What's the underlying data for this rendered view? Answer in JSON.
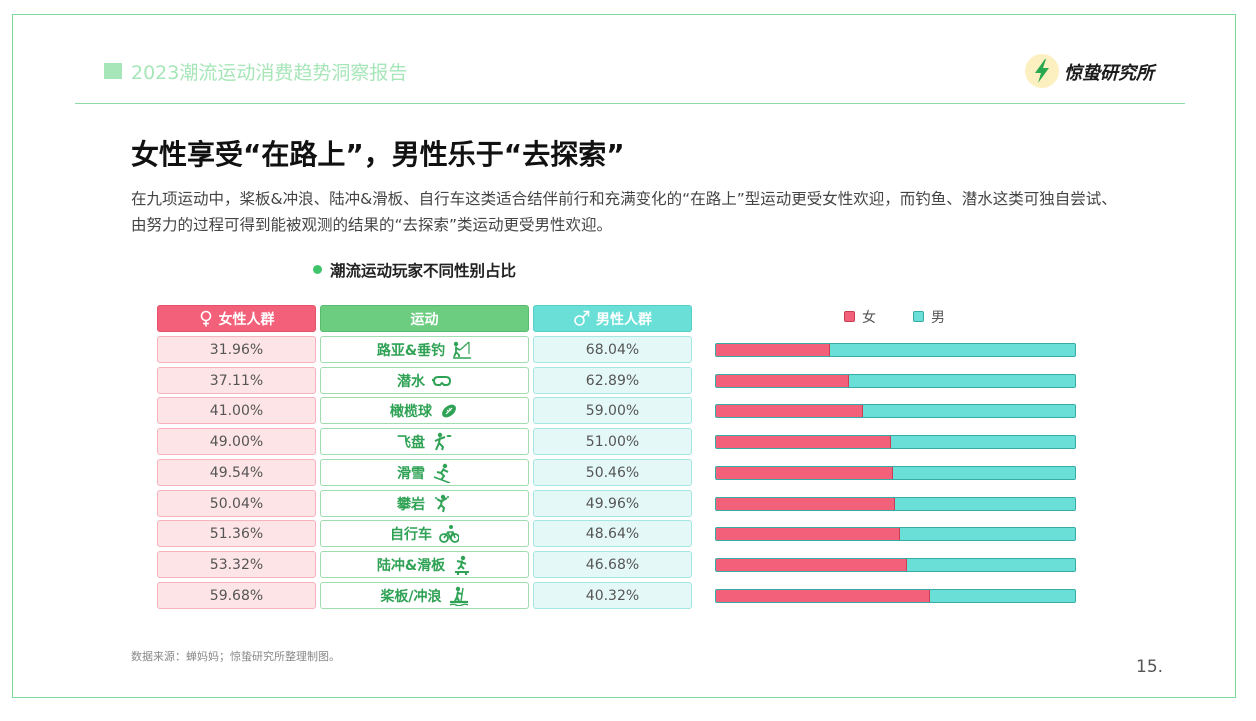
{
  "header": {
    "report_title": "2023潮流运动消费趋势洞察报告",
    "brand": "惊蛰研究所"
  },
  "headline": "女性享受“在路上”，男性乐于“去探索”",
  "paragraph": "在九项运动中，桨板&冲浪、陆冲&滑板、自行车这类适合结伴前行和充满变化的“在路上”型运动更受女性欢迎，而钓鱼、潜水这类可独自尝试、由努力的过程可得到能被观测的结果的“去探索”类运动更受男性欢迎。",
  "chart_title": "潮流运动玩家不同性别占比",
  "table_headers": {
    "female": "女性人群",
    "sport": "运动",
    "male": "男性人群"
  },
  "legend": {
    "female": "女",
    "male": "男"
  },
  "colors": {
    "female": "#f26179",
    "male": "#69dfd7",
    "accent": "#3fc46b"
  },
  "chart_data": {
    "type": "bar",
    "orientation": "horizontal-stacked-100",
    "title": "潮流运动玩家不同性别占比",
    "categories": [
      "路亚&垂钓",
      "潜水",
      "橄榄球",
      "飞盘",
      "滑雪",
      "攀岩",
      "自行车",
      "陆冲&滑板",
      "桨板/冲浪"
    ],
    "icons": [
      "fishing-icon",
      "diving-mask-icon",
      "rugby-ball-icon",
      "frisbee-icon",
      "skiing-icon",
      "climbing-icon",
      "bicycle-icon",
      "skateboard-icon",
      "paddleboard-icon"
    ],
    "series": [
      {
        "name": "女",
        "values": [
          31.96,
          37.11,
          41.0,
          49.0,
          49.54,
          50.04,
          51.36,
          53.32,
          59.68
        ],
        "labels": [
          "31.96%",
          "37.11%",
          "41.00%",
          "49.00%",
          "49.54%",
          "50.04%",
          "51.36%",
          "53.32%",
          "59.68%"
        ]
      },
      {
        "name": "男",
        "values": [
          68.04,
          62.89,
          59.0,
          51.0,
          50.46,
          49.96,
          48.64,
          46.68,
          40.32
        ],
        "labels": [
          "68.04%",
          "62.89%",
          "59.00%",
          "51.00%",
          "50.46%",
          "49.96%",
          "48.64%",
          "46.68%",
          "40.32%"
        ]
      }
    ],
    "xlim": [
      0,
      100
    ],
    "legend_position": "top"
  },
  "footer": {
    "source": "数据来源：蝉妈妈；惊蛰研究所整理制图。",
    "page_number": "15."
  }
}
